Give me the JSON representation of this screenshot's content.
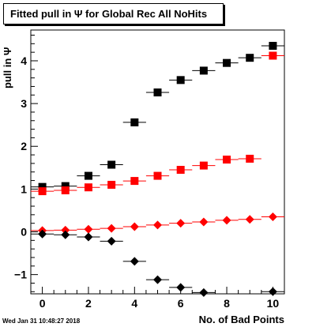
{
  "chart_data": {
    "type": "scatter",
    "title": "Fitted pull in Ψ  for Global Rec All NoHits",
    "xlabel": "No. of Bad Points",
    "ylabel": "pull in Ψ",
    "xlim": [
      -0.5,
      10.5
    ],
    "ylim": [
      -1.45,
      4.72
    ],
    "x_ticks": [
      0,
      2,
      4,
      6,
      8,
      10
    ],
    "y_ticks": [
      -1,
      0,
      1,
      2,
      3,
      4
    ],
    "grid": false,
    "legend": "none",
    "series": [
      {
        "marker": "square",
        "color": "#000000",
        "x_err": 0.5,
        "x": [
          0,
          1,
          2,
          3,
          4,
          5,
          6,
          7,
          8,
          9,
          10
        ],
        "y": [
          1.05,
          1.07,
          1.31,
          1.57,
          2.56,
          3.26,
          3.55,
          3.77,
          3.95,
          4.07,
          4.35
        ]
      },
      {
        "marker": "square",
        "color": "#ff0000",
        "x_err": 0.5,
        "x": [
          0,
          1,
          2,
          3,
          4,
          5,
          6,
          7,
          8,
          9,
          10
        ],
        "y": [
          0.95,
          0.97,
          1.04,
          1.1,
          1.19,
          1.31,
          1.45,
          1.55,
          1.69,
          1.71,
          4.12
        ]
      },
      {
        "marker": "diamond",
        "color": "#ff0000",
        "x_err": 0.5,
        "x": [
          0,
          1,
          2,
          3,
          4,
          5,
          6,
          7,
          8,
          9,
          10
        ],
        "y": [
          0.03,
          0.04,
          0.06,
          0.08,
          0.12,
          0.16,
          0.2,
          0.23,
          0.27,
          0.29,
          0.35
        ]
      },
      {
        "marker": "diamond",
        "color": "#000000",
        "x_err": 0.5,
        "x": [
          0,
          1,
          2,
          3,
          4,
          5,
          6,
          7,
          10
        ],
        "y": [
          -0.05,
          -0.07,
          -0.12,
          -0.22,
          -0.69,
          -1.12,
          -1.3,
          -1.42,
          -1.4
        ]
      }
    ]
  },
  "timestamp": "Wed Jan 31 10:48:27 2018"
}
